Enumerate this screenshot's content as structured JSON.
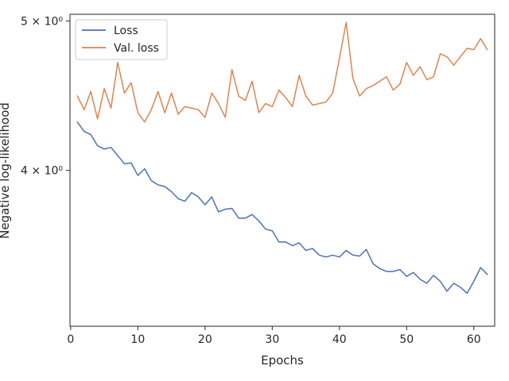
{
  "chart_data": {
    "type": "line",
    "title": "",
    "xlabel": "Epochs",
    "ylabel": "Negative log-likelihood",
    "xlim": [
      -0.1,
      63.1
    ],
    "ylim": [
      3.17,
      5.05
    ],
    "yscale": "log",
    "grid": false,
    "legend_placement": "top-left",
    "x_ticks": [
      0,
      10,
      20,
      30,
      40,
      50,
      60
    ],
    "x_tick_labels": [
      "0",
      "10",
      "20",
      "30",
      "40",
      "50",
      "60"
    ],
    "y_ticks": [
      4,
      5
    ],
    "y_tick_labels": [
      "4 × 10⁰",
      "5 × 10⁰"
    ],
    "x": [
      1,
      2,
      3,
      4,
      5,
      6,
      7,
      8,
      9,
      10,
      11,
      12,
      13,
      14,
      15,
      16,
      17,
      18,
      19,
      20,
      21,
      22,
      23,
      24,
      25,
      26,
      27,
      28,
      29,
      30,
      31,
      32,
      33,
      34,
      35,
      36,
      37,
      38,
      39,
      40,
      41,
      42,
      43,
      44,
      45,
      46,
      47,
      48,
      49,
      50,
      51,
      52,
      53,
      54,
      55,
      56,
      57,
      58,
      59,
      60,
      61,
      62
    ],
    "series": [
      {
        "name": "Loss",
        "color": "#4c72b0",
        "values": [
          4.3,
          4.24,
          4.22,
          4.15,
          4.13,
          4.14,
          4.09,
          4.04,
          4.045,
          3.97,
          4.01,
          3.94,
          3.915,
          3.905,
          3.875,
          3.835,
          3.82,
          3.87,
          3.845,
          3.8,
          3.845,
          3.76,
          3.775,
          3.78,
          3.725,
          3.725,
          3.745,
          3.71,
          3.665,
          3.655,
          3.595,
          3.595,
          3.575,
          3.59,
          3.55,
          3.56,
          3.525,
          3.515,
          3.525,
          3.515,
          3.55,
          3.525,
          3.52,
          3.555,
          3.48,
          3.455,
          3.44,
          3.44,
          3.45,
          3.415,
          3.435,
          3.4,
          3.38,
          3.42,
          3.39,
          3.34,
          3.38,
          3.36,
          3.33,
          3.39,
          3.46,
          3.425
        ]
      },
      {
        "name": "Val. loss",
        "color": "#dd8452",
        "values": [
          4.47,
          4.38,
          4.5,
          4.32,
          4.52,
          4.39,
          4.7,
          4.49,
          4.56,
          4.36,
          4.3,
          4.38,
          4.5,
          4.36,
          4.49,
          4.35,
          4.4,
          4.39,
          4.38,
          4.33,
          4.49,
          4.42,
          4.33,
          4.65,
          4.47,
          4.44,
          4.57,
          4.36,
          4.42,
          4.4,
          4.51,
          4.46,
          4.4,
          4.61,
          4.47,
          4.41,
          4.42,
          4.43,
          4.49,
          4.73,
          4.99,
          4.59,
          4.47,
          4.52,
          4.54,
          4.57,
          4.6,
          4.51,
          4.55,
          4.7,
          4.61,
          4.67,
          4.58,
          4.6,
          4.76,
          4.74,
          4.68,
          4.74,
          4.8,
          4.79,
          4.87,
          4.79
        ]
      }
    ]
  }
}
